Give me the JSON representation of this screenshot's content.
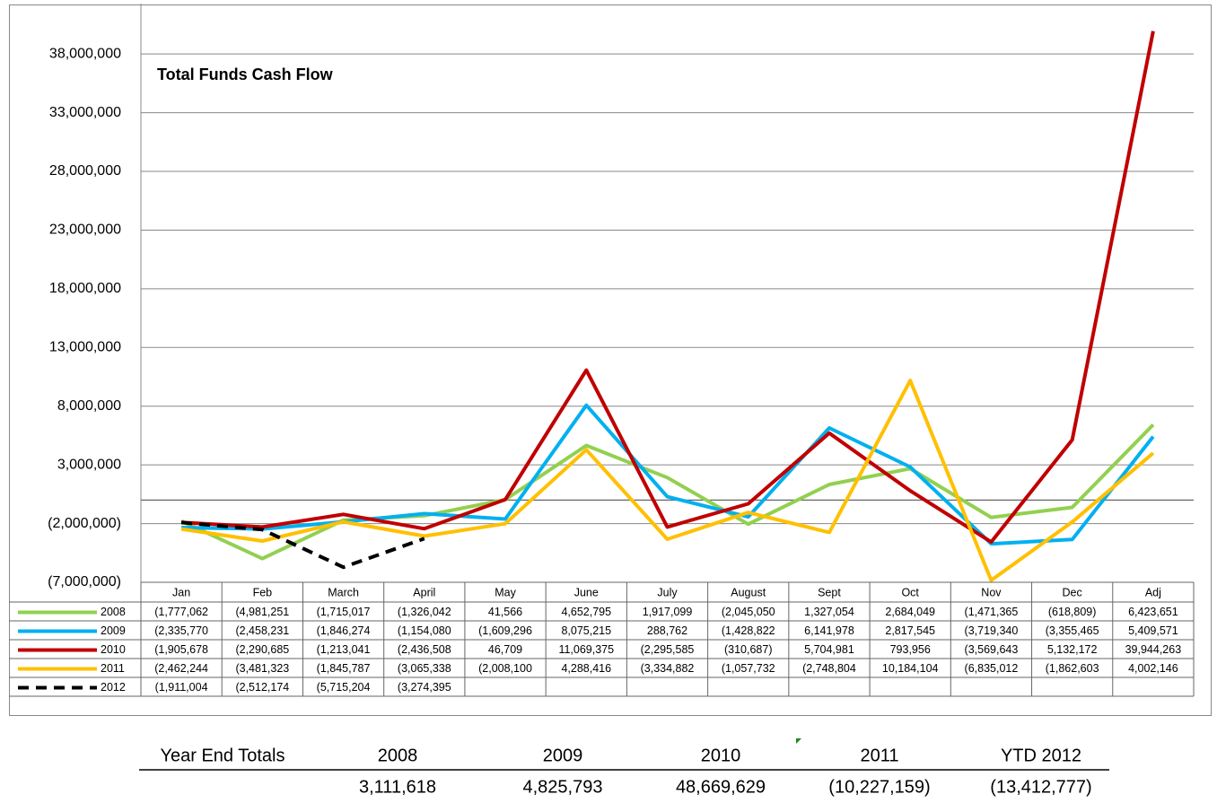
{
  "chart_data": {
    "type": "line",
    "title": "Total Funds Cash Flow",
    "categories": [
      "Jan",
      "Feb",
      "March",
      "April",
      "May",
      "June",
      "July",
      "August",
      "Sept",
      "Oct",
      "Nov",
      "Dec",
      "Adj"
    ],
    "ylim": [
      -7000000,
      40000000
    ],
    "yticks": [
      {
        "value": -7000000,
        "label": "(7,000,000)"
      },
      {
        "value": -2000000,
        "label": "(2,000,000)"
      },
      {
        "value": 3000000,
        "label": "3,000,000"
      },
      {
        "value": 8000000,
        "label": "8,000,000"
      },
      {
        "value": 13000000,
        "label": "13,000,000"
      },
      {
        "value": 18000000,
        "label": "18,000,000"
      },
      {
        "value": 23000000,
        "label": "23,000,000"
      },
      {
        "value": 28000000,
        "label": "28,000,000"
      },
      {
        "value": 33000000,
        "label": "33,000,000"
      },
      {
        "value": 38000000,
        "label": "38,000,000"
      }
    ],
    "grid": true,
    "series": [
      {
        "name": "2008",
        "color": "#92d050",
        "dash": false,
        "values": [
          -1777062,
          -4981251,
          -1715017,
          -1326042,
          41566,
          4652795,
          1917099,
          -2045050,
          1327054,
          2684049,
          -1471365,
          -618809,
          6423651
        ],
        "value_labels": [
          "(1,777,062",
          "(4,981,251",
          "(1,715,017",
          "(1,326,042",
          "41,566",
          "4,652,795",
          "1,917,099",
          "(2,045,050",
          "1,327,054",
          "2,684,049",
          "(1,471,365",
          "(618,809)",
          "6,423,651"
        ]
      },
      {
        "name": "2009",
        "color": "#00b0f0",
        "dash": false,
        "values": [
          -2335770,
          -2458231,
          -1846274,
          -1154080,
          -1609296,
          8075215,
          288762,
          -1428822,
          6141978,
          2817545,
          -3719340,
          -3355465,
          5409571
        ],
        "value_labels": [
          "(2,335,770",
          "(2,458,231",
          "(1,846,274",
          "(1,154,080",
          "(1,609,296",
          "8,075,215",
          "288,762",
          "(1,428,822",
          "6,141,978",
          "2,817,545",
          "(3,719,340",
          "(3,355,465",
          "5,409,571"
        ]
      },
      {
        "name": "2010",
        "color": "#c00000",
        "dash": false,
        "values": [
          -1905678,
          -2290685,
          -1213041,
          -2436508,
          46709,
          11069375,
          -2295585,
          -310687,
          5704981,
          793956,
          -3569643,
          5132172,
          39944263
        ],
        "value_labels": [
          "(1,905,678",
          "(2,290,685",
          "(1,213,041",
          "(2,436,508",
          "46,709",
          "11,069,375",
          "(2,295,585",
          "(310,687)",
          "5,704,981",
          "793,956",
          "(3,569,643",
          "5,132,172",
          "39,944,263"
        ]
      },
      {
        "name": "2011",
        "color": "#ffc000",
        "dash": false,
        "values": [
          -2462244,
          -3481323,
          -1845787,
          -3065338,
          -2008100,
          4288416,
          -3334882,
          -1057732,
          -2748804,
          10184104,
          -6835012,
          -1862603,
          4002146
        ],
        "value_labels": [
          "(2,462,244",
          "(3,481,323",
          "(1,845,787",
          "(3,065,338",
          "(2,008,100",
          "4,288,416",
          "(3,334,882",
          "(1,057,732",
          "(2,748,804",
          "10,184,104",
          "(6,835,012",
          "(1,862,603",
          "4,002,146"
        ]
      },
      {
        "name": "2012",
        "color": "#000000",
        "dash": true,
        "values": [
          -1911004,
          -2512174,
          -5715204,
          -3274395,
          null,
          null,
          null,
          null,
          null,
          null,
          null,
          null,
          null
        ],
        "value_labels": [
          "(1,911,004",
          "(2,512,174",
          "(5,715,204",
          "(3,274,395",
          null,
          null,
          null,
          null,
          null,
          null,
          null,
          null,
          null
        ]
      }
    ]
  },
  "totals": {
    "label": "Year End Totals",
    "columns": [
      {
        "year": "2008",
        "total": "3,111,618"
      },
      {
        "year": "2009",
        "total": "4,825,793"
      },
      {
        "year": "2010",
        "total": "48,669,629"
      },
      {
        "year": "2011",
        "total": "(10,227,159)"
      },
      {
        "year": "YTD 2012",
        "total": "(13,412,777)"
      }
    ]
  }
}
